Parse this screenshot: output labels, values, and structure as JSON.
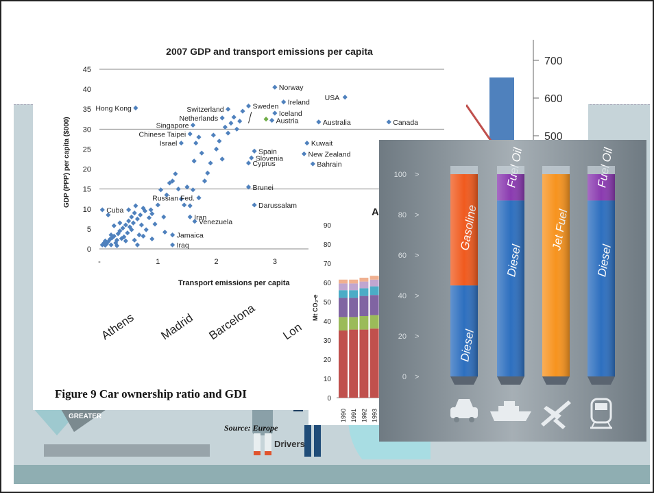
{
  "scatter": {
    "chart_data": {
      "type": "scatter",
      "title": "2007 GDP and transport emissions per capita",
      "xlabel": "Transport emissions per capita",
      "ylabel": "GDP (PPP) per capita ($000)",
      "xlim": [
        0,
        4
      ],
      "ylim": [
        0,
        45
      ],
      "yticks": [
        "0",
        "5",
        "10",
        "15",
        "20",
        "25",
        "30",
        "35",
        "40",
        "45"
      ],
      "xticks": [
        "-",
        "1",
        "2",
        "3"
      ],
      "points_blue": [
        [
          0.05,
          1.0
        ],
        [
          0.08,
          1.5
        ],
        [
          0.1,
          2.0
        ],
        [
          0.12,
          1.2
        ],
        [
          0.15,
          1.8
        ],
        [
          0.18,
          2.4
        ],
        [
          0.2,
          1.0
        ],
        [
          0.22,
          2.8
        ],
        [
          0.25,
          3.2
        ],
        [
          0.28,
          1.5
        ],
        [
          0.3,
          2.2
        ],
        [
          0.32,
          3.8
        ],
        [
          0.35,
          4.5
        ],
        [
          0.38,
          2.6
        ],
        [
          0.4,
          5.2
        ],
        [
          0.42,
          3.0
        ],
        [
          0.45,
          6.0
        ],
        [
          0.48,
          4.0
        ],
        [
          0.5,
          7.0
        ],
        [
          0.52,
          5.5
        ],
        [
          0.55,
          8.0
        ],
        [
          0.58,
          6.5
        ],
        [
          0.6,
          9.0
        ],
        [
          0.62,
          10.8
        ],
        [
          0.65,
          7.5
        ],
        [
          0.68,
          3.5
        ],
        [
          0.7,
          8.5
        ],
        [
          0.72,
          6.0
        ],
        [
          0.75,
          10.2
        ],
        [
          0.78,
          9.5
        ],
        [
          0.8,
          4.8
        ],
        [
          0.85,
          7.8
        ],
        [
          0.88,
          9.8
        ],
        [
          0.9,
          2.5
        ],
        [
          0.95,
          6.2
        ],
        [
          1.0,
          11.0
        ],
        [
          1.05,
          14.8
        ],
        [
          1.1,
          8.0
        ],
        [
          1.12,
          4.2
        ],
        [
          1.15,
          13.5
        ],
        [
          1.2,
          16.5
        ],
        [
          1.25,
          17.0
        ],
        [
          1.3,
          18.8
        ],
        [
          1.35,
          15.0
        ],
        [
          1.4,
          12.5
        ],
        [
          1.45,
          11.0
        ],
        [
          1.5,
          15.5
        ],
        [
          1.55,
          10.8
        ],
        [
          1.6,
          14.8
        ],
        [
          1.62,
          22.0
        ],
        [
          1.65,
          26.5
        ],
        [
          1.7,
          28.0
        ],
        [
          1.75,
          24.0
        ],
        [
          1.8,
          17.0
        ],
        [
          1.85,
          19.0
        ],
        [
          1.9,
          21.5
        ],
        [
          1.95,
          28.5
        ],
        [
          2.0,
          25.0
        ],
        [
          2.05,
          27.0
        ],
        [
          2.1,
          22.5
        ],
        [
          2.15,
          30.5
        ],
        [
          2.2,
          29.0
        ],
        [
          2.25,
          31.5
        ],
        [
          2.3,
          33.0
        ],
        [
          2.35,
          30.0
        ],
        [
          2.4,
          32.0
        ],
        [
          2.45,
          34.5
        ],
        [
          0.65,
          1.0
        ],
        [
          0.3,
          0.8
        ],
        [
          0.45,
          2.0
        ],
        [
          0.2,
          3.5
        ],
        [
          0.55,
          4.8
        ],
        [
          0.35,
          6.5
        ],
        [
          0.75,
          3.2
        ],
        [
          0.1,
          0.9
        ],
        [
          0.25,
          5.8
        ],
        [
          0.6,
          2.2
        ],
        [
          0.15,
          8.5
        ],
        [
          0.9,
          8.8
        ],
        [
          0.5,
          9.8
        ]
      ],
      "points_green": [
        [
          2.85,
          32.5
        ]
      ],
      "annotations": [
        {
          "text": "Norway",
          "x": 3.0,
          "y": 40.5
        },
        {
          "text": "Hong Kong",
          "x": 0.62,
          "y": 35.3
        },
        {
          "text": "Switzerland",
          "x": 2.2,
          "y": 35.0
        },
        {
          "text": "Sweden",
          "x": 2.55,
          "y": 35.8
        },
        {
          "text": "Ireland",
          "x": 3.15,
          "y": 36.8
        },
        {
          "text": "USA",
          "x": 4.2,
          "y": 38.0
        },
        {
          "text": "Iceland",
          "x": 3.0,
          "y": 34.0
        },
        {
          "text": "Netherlands",
          "x": 2.1,
          "y": 32.8
        },
        {
          "text": "Austria",
          "x": 2.95,
          "y": 32.2
        },
        {
          "text": "Australia",
          "x": 3.75,
          "y": 31.8
        },
        {
          "text": "Canada",
          "x": 4.95,
          "y": 31.8
        },
        {
          "text": "Singapore",
          "x": 1.6,
          "y": 31.0
        },
        {
          "text": "Chinese Taipei",
          "x": 1.55,
          "y": 28.8
        },
        {
          "text": "Israel",
          "x": 1.4,
          "y": 26.5
        },
        {
          "text": "Kuwait",
          "x": 3.55,
          "y": 26.5
        },
        {
          "text": "Spain",
          "x": 2.65,
          "y": 24.5
        },
        {
          "text": "Slovenia",
          "x": 2.6,
          "y": 22.8
        },
        {
          "text": "New Zealand",
          "x": 3.5,
          "y": 23.8
        },
        {
          "text": "Cyprus",
          "x": 2.55,
          "y": 21.5
        },
        {
          "text": "Bahrain",
          "x": 3.65,
          "y": 21.3
        },
        {
          "text": "Brunei",
          "x": 2.55,
          "y": 15.5
        },
        {
          "text": "Darussalam",
          "x": 2.65,
          "y": 11.0
        },
        {
          "text": "Russian Fed.",
          "x": 1.7,
          "y": 12.8
        },
        {
          "text": "Cuba",
          "x": 0.05,
          "y": 9.8
        },
        {
          "text": "Iran",
          "x": 1.55,
          "y": 8.0
        },
        {
          "text": "Venezuela",
          "x": 1.63,
          "y": 6.9
        },
        {
          "text": "Jamaica",
          "x": 1.25,
          "y": 3.5
        },
        {
          "text": "Iraq",
          "x": 1.25,
          "y": 1.0
        }
      ]
    }
  },
  "city_labels": [
    "Athens",
    "Madrid",
    "Barcelona",
    "Lon"
  ],
  "figure_caption": "Figure 9  Car ownership ratio and GDI",
  "source_text": "Source: Europe",
  "drivers_text": "Drivers",
  "right_axis": {
    "ticks": [
      "700",
      "600",
      "500"
    ]
  },
  "stacked": {
    "chart_data": {
      "type": "bar",
      "title": "A",
      "ylabel": "Mt CO₂-e",
      "ylim": [
        0,
        90
      ],
      "yticks": [
        "0",
        "10",
        "20",
        "30",
        "40",
        "50",
        "60",
        "70",
        "80",
        "90"
      ],
      "categories": [
        "1990",
        "1991",
        "1992",
        "1993"
      ],
      "series": [
        {
          "color": "#c0504d",
          "values": [
            35,
            35.5,
            35.5,
            36
          ]
        },
        {
          "color": "#9bbb59",
          "values": [
            7,
            6.5,
            7,
            7
          ]
        },
        {
          "color": "#8064a2",
          "values": [
            10,
            10,
            10.5,
            10.5
          ]
        },
        {
          "color": "#4bacc6",
          "values": [
            4,
            4,
            4,
            4.5
          ]
        },
        {
          "color": "#c0a6d0",
          "values": [
            3.5,
            3.5,
            3.5,
            3.5
          ]
        },
        {
          "color": "#f0b090",
          "values": [
            2,
            2,
            2,
            2
          ]
        }
      ]
    }
  },
  "fuels": {
    "chart_data": {
      "type": "bar",
      "yticks": [
        "100",
        "80",
        "60",
        "40",
        "20",
        "0"
      ],
      "bars": [
        {
          "icon": "car-icon",
          "segments": [
            {
              "label": "Diesel",
              "pct": 45,
              "color": "#2d6fbf"
            },
            {
              "label": "Gasoline",
              "pct": 55,
              "color": "#f05a1e"
            }
          ]
        },
        {
          "icon": "ship-icon",
          "segments": [
            {
              "label": "Diesel",
              "pct": 87,
              "color": "#2d6fbf"
            },
            {
              "label": "Fuel Oil",
              "pct": 13,
              "color": "#8a3ab0"
            }
          ]
        },
        {
          "icon": "plane-icon",
          "segments": [
            {
              "label": "Jet Fuel",
              "pct": 100,
              "color": "#f7931e"
            }
          ]
        },
        {
          "icon": "train-icon",
          "segments": [
            {
              "label": "Diesel",
              "pct": 87,
              "color": "#2d6fbf"
            },
            {
              "label": "Fuel Oil",
              "pct": 13,
              "color": "#8a3ab0"
            }
          ]
        }
      ]
    }
  }
}
